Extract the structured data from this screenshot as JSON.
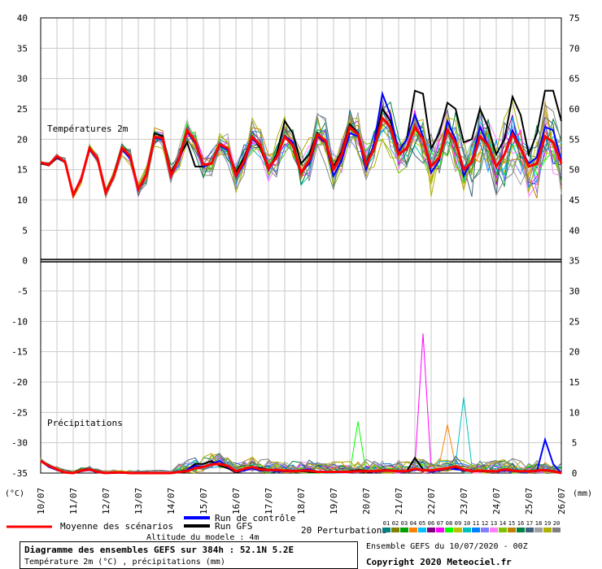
{
  "chart_data": {
    "type": "line",
    "title": "Diagramme des ensembles GEFS sur 384h : 52.1N 5.2E",
    "subtitle": "Température 2m (°C) , précipitations (mm)",
    "altitude_note": "Altitude du modele : 4m",
    "run_info": "Ensemble GEFS du 10/07/2020 - 00Z",
    "copyright": "Copyright 2020 Meteociel.fr",
    "section_labels": {
      "temperature": "Températures 2m",
      "precip": "Précipitations"
    },
    "axis_units": {
      "left": "(°C)",
      "right": "(mm)"
    },
    "x_tick_labels": [
      "10/07",
      "11/07",
      "12/07",
      "13/07",
      "14/07",
      "15/07",
      "16/07",
      "17/07",
      "18/07",
      "19/07",
      "20/07",
      "21/07",
      "22/07",
      "23/07",
      "24/07",
      "25/07",
      "26/07"
    ],
    "left_axis_ticks": [
      40,
      35,
      30,
      25,
      20,
      15,
      10,
      5,
      0,
      -5,
      -10,
      -15,
      -20,
      -25,
      -30,
      -35
    ],
    "right_axis_ticks": [
      75,
      70,
      65,
      60,
      55,
      50,
      45,
      40,
      35,
      30,
      25,
      20,
      15,
      10,
      5,
      0
    ],
    "ylim_temp": [
      -35,
      40
    ],
    "ylim_precip_mm": [
      0,
      35
    ],
    "grid": true,
    "legend": {
      "mean_label": "Moyenne des scénarios",
      "control_label": "Run de contrôle",
      "gfs_label": "Run GFS",
      "perturbations_label": "20 Perturbations",
      "perturbation_numbers": [
        "01",
        "02",
        "03",
        "04",
        "05",
        "06",
        "07",
        "08",
        "09",
        "10",
        "11",
        "12",
        "13",
        "14",
        "15",
        "16",
        "17",
        "18",
        "19",
        "20"
      ],
      "colors": {
        "mean": "#ff0000",
        "control": "#0000ff",
        "gfs": "#000000"
      },
      "perturbation_colors": [
        "#008080",
        "#808000",
        "#00a000",
        "#ff8000",
        "#00c0ff",
        "#800080",
        "#ff00ff",
        "#00ff00",
        "#c0c000",
        "#00c0c0",
        "#0080ff",
        "#8080ff",
        "#ff80ff",
        "#80c000",
        "#c08000",
        "#008040",
        "#406080",
        "#a0a0a0",
        "#b0b000",
        "#808080"
      ]
    },
    "series": [
      {
        "name": "Moyenne des scénarios",
        "time_hours": [
          0,
          6,
          12,
          18,
          24,
          30,
          36,
          42,
          48,
          54,
          60,
          66,
          72,
          78,
          84,
          90,
          96,
          102,
          108,
          114,
          120,
          126,
          132,
          138,
          144,
          150,
          156,
          162,
          168,
          174,
          180,
          186,
          192,
          198,
          204,
          210,
          216,
          222,
          228,
          234,
          240,
          246,
          252,
          258,
          264,
          270,
          276,
          282,
          288,
          294,
          300,
          306,
          312,
          318,
          324,
          330,
          336,
          342,
          348,
          354,
          360,
          366,
          372,
          378,
          384
        ],
        "temp_c": [
          16.2,
          15.8,
          17.2,
          16.3,
          10.8,
          13.5,
          18.5,
          16.8,
          11.2,
          14.0,
          18.6,
          17.2,
          11.8,
          14.2,
          20.4,
          20.2,
          14.0,
          16.8,
          21.5,
          19.6,
          15.8,
          16.0,
          19.2,
          18.5,
          14.0,
          16.4,
          20.4,
          19.0,
          15.2,
          17.0,
          20.4,
          19.0,
          14.5,
          16.5,
          20.8,
          19.8,
          15.0,
          17.5,
          22.0,
          20.8,
          15.8,
          18.5,
          23.5,
          22.0,
          17.5,
          18.5,
          22.0,
          20.0,
          15.5,
          17.0,
          21.5,
          19.5,
          15.0,
          16.2,
          20.5,
          19.0,
          15.5,
          17.5,
          20.8,
          18.5,
          15.5,
          16.0,
          20.5,
          19.5,
          16.0
        ],
        "precip_mm": [
          2.0,
          1.2,
          0.6,
          0.1,
          0.0,
          0.4,
          0.6,
          0.2,
          0.0,
          0.1,
          0.1,
          0.0,
          0.0,
          0.0,
          0.0,
          0.0,
          0.0,
          0.2,
          0.3,
          0.8,
          1.0,
          1.4,
          1.5,
          1.2,
          0.3,
          0.7,
          1.0,
          0.6,
          0.5,
          0.5,
          0.4,
          0.3,
          0.4,
          0.4,
          0.2,
          0.2,
          0.2,
          0.2,
          0.2,
          0.3,
          0.3,
          0.3,
          0.4,
          0.4,
          0.3,
          0.3,
          0.7,
          0.5,
          0.4,
          0.6,
          0.8,
          1.1,
          0.6,
          0.3,
          0.4,
          0.3,
          0.3,
          0.6,
          0.4,
          0.3,
          0.3,
          0.4,
          0.5,
          0.3,
          0.0
        ]
      },
      {
        "name": "Run de contrôle",
        "temp_c": [
          16.2,
          15.8,
          17.0,
          16.2,
          10.8,
          13.3,
          18.3,
          16.6,
          11.2,
          14.0,
          18.3,
          16.8,
          11.8,
          14.2,
          20.2,
          20.0,
          13.8,
          16.8,
          21.2,
          19.3,
          15.5,
          16.0,
          19.0,
          18.2,
          13.8,
          16.0,
          20.0,
          19.0,
          15.0,
          17.0,
          20.6,
          19.5,
          14.5,
          16.0,
          20.5,
          19.5,
          14.0,
          16.5,
          21.0,
          20.5,
          15.0,
          19.5,
          27.5,
          24.0,
          18.0,
          20.0,
          24.0,
          20.5,
          14.5,
          16.5,
          23.0,
          20.0,
          14.0,
          16.5,
          22.0,
          19.0,
          15.5,
          17.5,
          21.5,
          18.5,
          16.0,
          17.0,
          22.0,
          21.5,
          16.5
        ],
        "precip_mm": [
          2.0,
          1.0,
          0.5,
          0.1,
          0.0,
          0.3,
          0.5,
          0.1,
          0.0,
          0.1,
          0.0,
          0.0,
          0.0,
          0.0,
          0.0,
          0.0,
          0.0,
          0.1,
          0.5,
          1.2,
          1.0,
          1.5,
          2.0,
          1.0,
          0.2,
          0.4,
          0.8,
          0.4,
          0.4,
          0.3,
          0.3,
          0.2,
          0.5,
          0.6,
          0.2,
          0.1,
          0.1,
          0.2,
          0.1,
          0.3,
          0.2,
          0.2,
          0.3,
          0.4,
          0.2,
          0.2,
          0.5,
          0.6,
          0.2,
          0.4,
          0.8,
          0.6,
          0.5,
          0.3,
          0.4,
          0.2,
          0.2,
          0.4,
          0.3,
          0.2,
          0.2,
          0.3,
          5.5,
          1.5,
          0.0
        ]
      },
      {
        "name": "Run GFS",
        "temp_c": [
          16.0,
          15.7,
          16.9,
          16.3,
          10.7,
          13.4,
          18.4,
          16.7,
          11.1,
          13.9,
          18.4,
          16.9,
          11.7,
          14.1,
          21.0,
          20.5,
          14.5,
          17.0,
          19.5,
          15.5,
          15.5,
          16.0,
          19.0,
          18.5,
          14.5,
          17.0,
          20.5,
          18.5,
          15.0,
          17.5,
          23.0,
          21.0,
          16.0,
          17.5,
          21.0,
          19.5,
          15.5,
          18.0,
          22.5,
          21.0,
          16.0,
          19.0,
          25.0,
          23.0,
          18.0,
          20.0,
          28.0,
          27.5,
          18.5,
          21.0,
          26.0,
          25.0,
          19.5,
          20.0,
          25.0,
          22.0,
          17.5,
          20.0,
          27.0,
          24.0,
          17.5,
          21.0,
          28.0,
          28.0,
          23.0
        ],
        "precip_mm": [
          2.0,
          1.3,
          0.5,
          0.1,
          0.0,
          0.5,
          0.7,
          0.2,
          0.0,
          0.0,
          0.1,
          0.0,
          0.0,
          0.0,
          0.0,
          0.0,
          0.0,
          0.2,
          0.5,
          1.5,
          1.5,
          2.0,
          1.2,
          0.8,
          0.1,
          0.5,
          1.0,
          0.8,
          0.6,
          0.5,
          0.3,
          0.4,
          0.3,
          0.2,
          0.1,
          0.2,
          0.2,
          0.2,
          0.3,
          0.5,
          0.4,
          0.2,
          0.5,
          0.5,
          0.3,
          0.3,
          2.5,
          0.6,
          0.3,
          0.5,
          0.7,
          0.8,
          0.4,
          0.3,
          0.3,
          0.2,
          0.3,
          0.4,
          0.5,
          0.3,
          0.3,
          0.5,
          0.4,
          0.3,
          0.0
        ]
      }
    ]
  }
}
